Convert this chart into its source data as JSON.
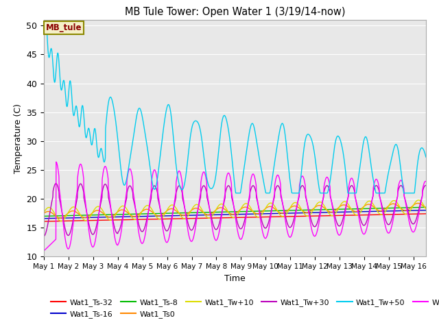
{
  "title": "MB Tule Tower: Open Water 1 (3/19/14-now)",
  "xlabel": "Time",
  "ylabel": "Temperature (C)",
  "xlim": [
    0,
    15.5
  ],
  "ylim": [
    10,
    51
  ],
  "yticks": [
    10,
    15,
    20,
    25,
    30,
    35,
    40,
    45,
    50
  ],
  "xtick_labels": [
    "May 1",
    "May 2",
    "May 3",
    "May 4",
    "May 5",
    "May 6",
    "May 7",
    "May 8",
    "May 9",
    "May 10",
    "May 11",
    "May 12",
    "May 13",
    "May 14",
    "May 15",
    "May 16"
  ],
  "xtick_positions": [
    0,
    1,
    2,
    3,
    4,
    5,
    6,
    7,
    8,
    9,
    10,
    11,
    12,
    13,
    14,
    15
  ],
  "legend_label": "MB_tule",
  "bg_color": "#e8e8e8",
  "figsize": [
    6.4,
    4.8
  ],
  "dpi": 100,
  "series_colors": {
    "Wat1_Ts-32": "#ff0000",
    "Wat1_Ts-16": "#0000cc",
    "Wat1_Ts-8": "#00bb00",
    "Wat1_Ts0": "#ff8800",
    "Wat1_Tw+10": "#dddd00",
    "Wat1_Tw+30": "#bb00bb",
    "Wat1_Tw+50": "#00ccee",
    "Wat1_Tw100": "#ff00ff"
  }
}
